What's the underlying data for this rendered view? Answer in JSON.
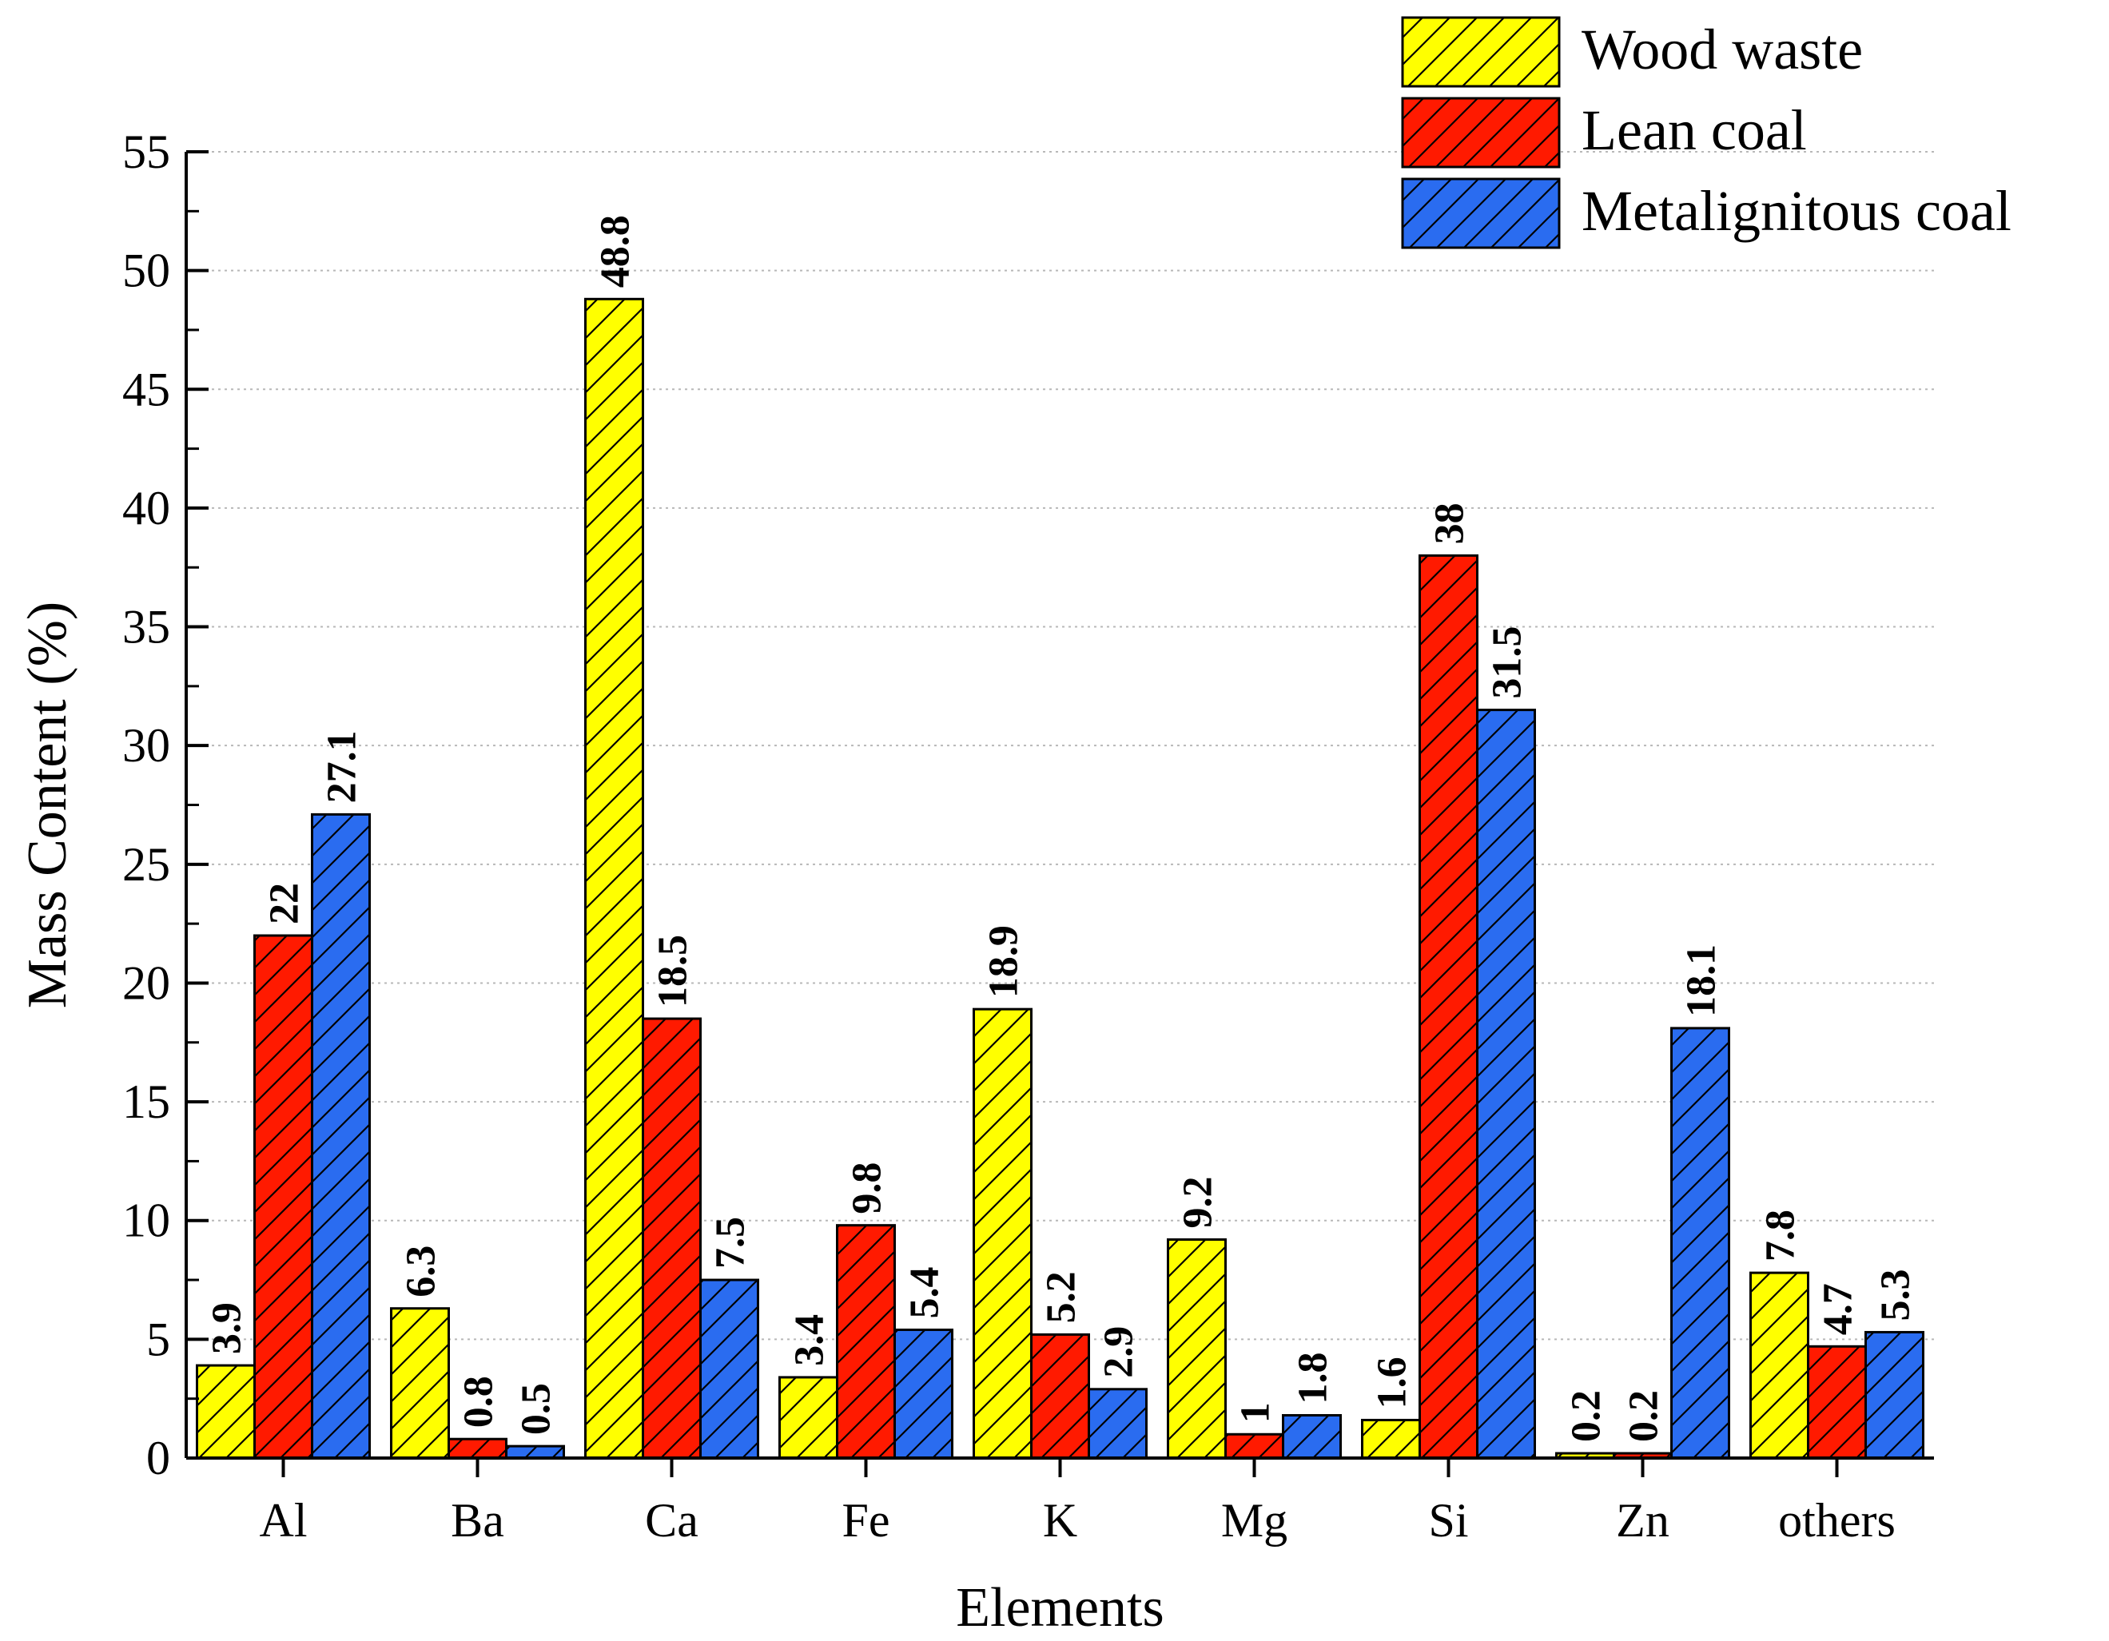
{
  "chart_data": {
    "type": "bar",
    "title": "",
    "xlabel": "Elements",
    "ylabel": "Mass Content (%)",
    "ylim": [
      0,
      55
    ],
    "yticks": [
      0,
      5,
      10,
      15,
      20,
      25,
      30,
      35,
      40,
      45,
      50,
      55
    ],
    "grid": "horizontal-dotted",
    "legend_position": "top-right",
    "categories": [
      "Al",
      "Ba",
      "Ca",
      "Fe",
      "K",
      "Mg",
      "Si",
      "Zn",
      "others"
    ],
    "series": [
      {
        "name": "Wood waste",
        "color": "#ffff00",
        "values": [
          3.9,
          6.3,
          48.8,
          3.4,
          18.9,
          9.2,
          1.6,
          0.2,
          7.8
        ]
      },
      {
        "name": "Lean coal",
        "color": "#ff1a00",
        "values": [
          22,
          0.8,
          18.5,
          9.8,
          5.2,
          1,
          38,
          0.2,
          4.7
        ]
      },
      {
        "name": "Metalignitous coal",
        "color": "#2a6cf0",
        "values": [
          27.1,
          0.5,
          7.5,
          5.4,
          2.9,
          1.8,
          31.5,
          18.1,
          5.3
        ]
      }
    ]
  }
}
